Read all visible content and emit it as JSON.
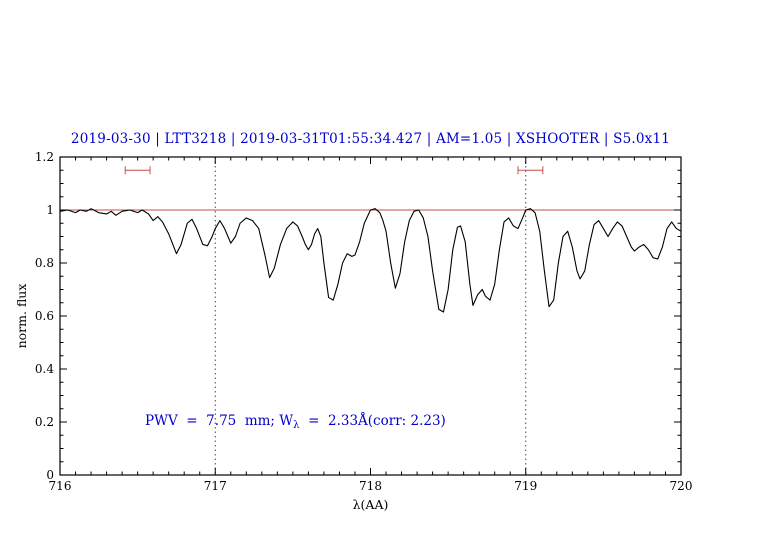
{
  "header": {
    "title": "2019-03-30 | LTT3218 | 2019-03-31T01:55:34.427 | AM=1.05 | XSHOOTER | S5.0x11"
  },
  "annotation": {
    "prefix": "PWV  =  7.75  mm; W",
    "subscript": "λ",
    "suffix": "  =  2.33Å(corr: 2.23)"
  },
  "chart_data": {
    "type": "line",
    "title": "2019-03-30 | LTT3218 | 2019-03-31T01:55:34.427 | AM=1.05 | XSHOOTER | S5.0x11",
    "xlabel": "λ(AA)",
    "ylabel": "norm. flux",
    "xlim": [
      716,
      720
    ],
    "ylim": [
      0,
      1.2
    ],
    "x_ticks": [
      716,
      717,
      718,
      719,
      720
    ],
    "x_tick_labels": [
      "716",
      "717",
      "718",
      "719",
      "720"
    ],
    "y_ticks": [
      0,
      0.2,
      0.4,
      0.6,
      0.8,
      1,
      1.2
    ],
    "y_tick_labels": [
      "0",
      "0.2",
      "0.4",
      "0.6",
      "0.8",
      "1",
      "1.2"
    ],
    "grid": false,
    "reference_line_y": 1.0,
    "vlines": [
      717,
      719
    ],
    "markers": [
      {
        "x_start": 716.42,
        "x_end": 716.58,
        "y": 1.15
      },
      {
        "x_start": 718.95,
        "x_end": 719.11,
        "y": 1.15
      }
    ],
    "colors": {
      "spectrum": "#000000",
      "reference": "#c0504d",
      "marker": "#c0504d",
      "title": "#0000cd",
      "annotation": "#0000cd",
      "vline": "#444444"
    },
    "series": [
      {
        "name": "telluric-spectrum",
        "x": [
          716.0,
          716.05,
          716.1,
          716.13,
          716.17,
          716.2,
          716.25,
          716.3,
          716.33,
          716.36,
          716.4,
          716.45,
          716.5,
          716.53,
          716.57,
          716.6,
          716.63,
          716.66,
          716.7,
          716.75,
          716.78,
          716.82,
          716.85,
          716.88,
          716.92,
          716.95,
          716.98,
          717.0,
          717.03,
          717.06,
          717.1,
          717.13,
          717.16,
          717.2,
          717.24,
          717.28,
          717.32,
          717.35,
          717.38,
          717.42,
          717.46,
          717.5,
          717.53,
          717.56,
          717.58,
          717.6,
          717.62,
          717.64,
          717.66,
          717.68,
          717.7,
          717.73,
          717.76,
          717.79,
          717.82,
          717.85,
          717.88,
          717.9,
          717.93,
          717.96,
          718.0,
          718.03,
          718.06,
          718.08,
          718.1,
          718.13,
          718.16,
          718.19,
          718.22,
          718.25,
          718.28,
          718.31,
          718.34,
          718.37,
          718.4,
          718.44,
          718.47,
          718.5,
          718.53,
          718.56,
          718.58,
          718.61,
          718.64,
          718.66,
          718.69,
          718.72,
          718.74,
          718.77,
          718.8,
          718.83,
          718.86,
          718.89,
          718.92,
          718.95,
          718.98,
          719.0,
          719.03,
          719.06,
          719.09,
          719.12,
          719.15,
          719.18,
          719.21,
          719.24,
          719.27,
          719.3,
          719.33,
          719.35,
          719.38,
          719.41,
          719.44,
          719.47,
          719.5,
          719.53,
          719.56,
          719.59,
          719.62,
          719.65,
          719.68,
          719.7,
          719.73,
          719.76,
          719.79,
          719.82,
          719.85,
          719.88,
          719.91,
          719.94,
          719.97,
          720.0
        ],
        "y": [
          0.995,
          1.0,
          0.99,
          1.0,
          0.995,
          1.005,
          0.99,
          0.985,
          0.995,
          0.98,
          0.995,
          1.0,
          0.99,
          1.0,
          0.985,
          0.96,
          0.975,
          0.955,
          0.91,
          0.835,
          0.87,
          0.95,
          0.965,
          0.93,
          0.87,
          0.865,
          0.9,
          0.93,
          0.96,
          0.93,
          0.875,
          0.9,
          0.95,
          0.97,
          0.96,
          0.93,
          0.83,
          0.745,
          0.78,
          0.87,
          0.93,
          0.955,
          0.94,
          0.9,
          0.87,
          0.85,
          0.87,
          0.91,
          0.93,
          0.9,
          0.8,
          0.67,
          0.66,
          0.72,
          0.8,
          0.835,
          0.825,
          0.83,
          0.88,
          0.95,
          1.0,
          1.005,
          0.99,
          0.96,
          0.92,
          0.8,
          0.705,
          0.76,
          0.88,
          0.96,
          0.995,
          1.0,
          0.97,
          0.9,
          0.77,
          0.625,
          0.615,
          0.7,
          0.85,
          0.935,
          0.94,
          0.88,
          0.72,
          0.64,
          0.68,
          0.7,
          0.675,
          0.66,
          0.72,
          0.85,
          0.955,
          0.97,
          0.94,
          0.93,
          0.97,
          1.0,
          1.005,
          0.99,
          0.92,
          0.77,
          0.635,
          0.66,
          0.8,
          0.9,
          0.92,
          0.86,
          0.77,
          0.74,
          0.77,
          0.87,
          0.945,
          0.96,
          0.93,
          0.9,
          0.93,
          0.955,
          0.94,
          0.9,
          0.86,
          0.845,
          0.86,
          0.87,
          0.85,
          0.82,
          0.815,
          0.86,
          0.93,
          0.955,
          0.93,
          0.92
        ]
      }
    ],
    "legend": null
  }
}
